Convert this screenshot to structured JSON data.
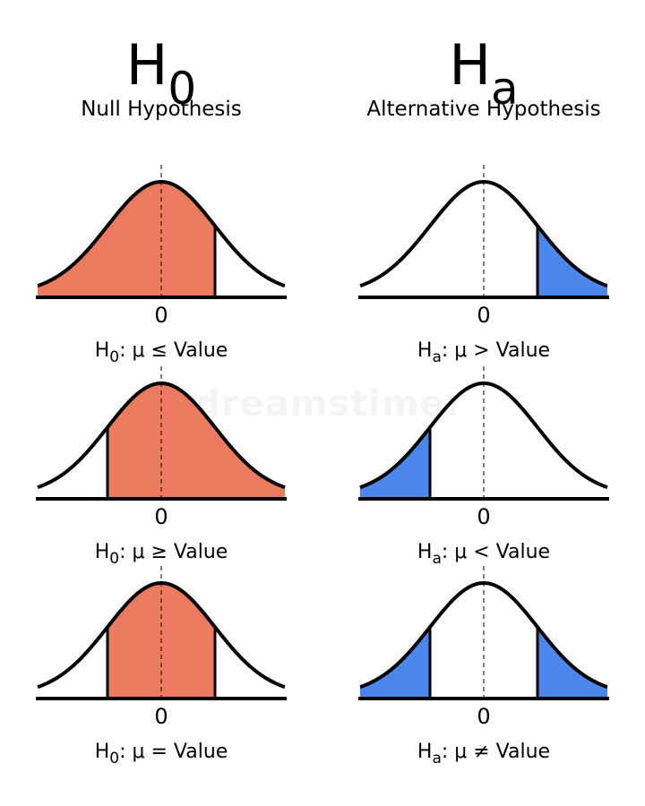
{
  "headers": {
    "null": {
      "symbol": "H",
      "subscript": "0",
      "title": "Null Hypothesis"
    },
    "alt": {
      "symbol": "H",
      "subscript": "a",
      "title": "Alternative Hypothesis"
    }
  },
  "zero_label": "0",
  "colors": {
    "null_fill": "#ec7a5e",
    "alt_fill": "#4b86eb",
    "curve": "#000000"
  },
  "panels": [
    {
      "id": "null-1",
      "column": "null",
      "shade": "left",
      "cut_left": null,
      "cut_right": 1.0,
      "cond": {
        "h": "H",
        "sub": "0",
        "rest": ": μ ≤ Value"
      }
    },
    {
      "id": "alt-1",
      "column": "alt",
      "shade": "right",
      "cut_left": null,
      "cut_right": 1.0,
      "cond": {
        "h": "H",
        "sub": "a",
        "rest": ": μ > Value"
      }
    },
    {
      "id": "null-2",
      "column": "null",
      "shade": "right",
      "cut_left": -1.0,
      "cut_right": null,
      "cond": {
        "h": "H",
        "sub": "0",
        "rest": ": μ ≥ Value"
      }
    },
    {
      "id": "alt-2",
      "column": "alt",
      "shade": "left",
      "cut_left": -1.0,
      "cut_right": null,
      "cond": {
        "h": "H",
        "sub": "a",
        "rest": ": μ < Value"
      }
    },
    {
      "id": "null-3",
      "column": "null",
      "shade": "middle",
      "cut_left": -1.0,
      "cut_right": 1.0,
      "cond": {
        "h": "H",
        "sub": "0",
        "rest": ": μ = Value"
      }
    },
    {
      "id": "alt-3",
      "column": "alt",
      "shade": "tails",
      "cut_left": -1.0,
      "cut_right": 1.0,
      "cond": {
        "h": "H",
        "sub": "a",
        "rest": ": μ ≠ Value"
      }
    }
  ],
  "watermark": "dreamstime."
}
